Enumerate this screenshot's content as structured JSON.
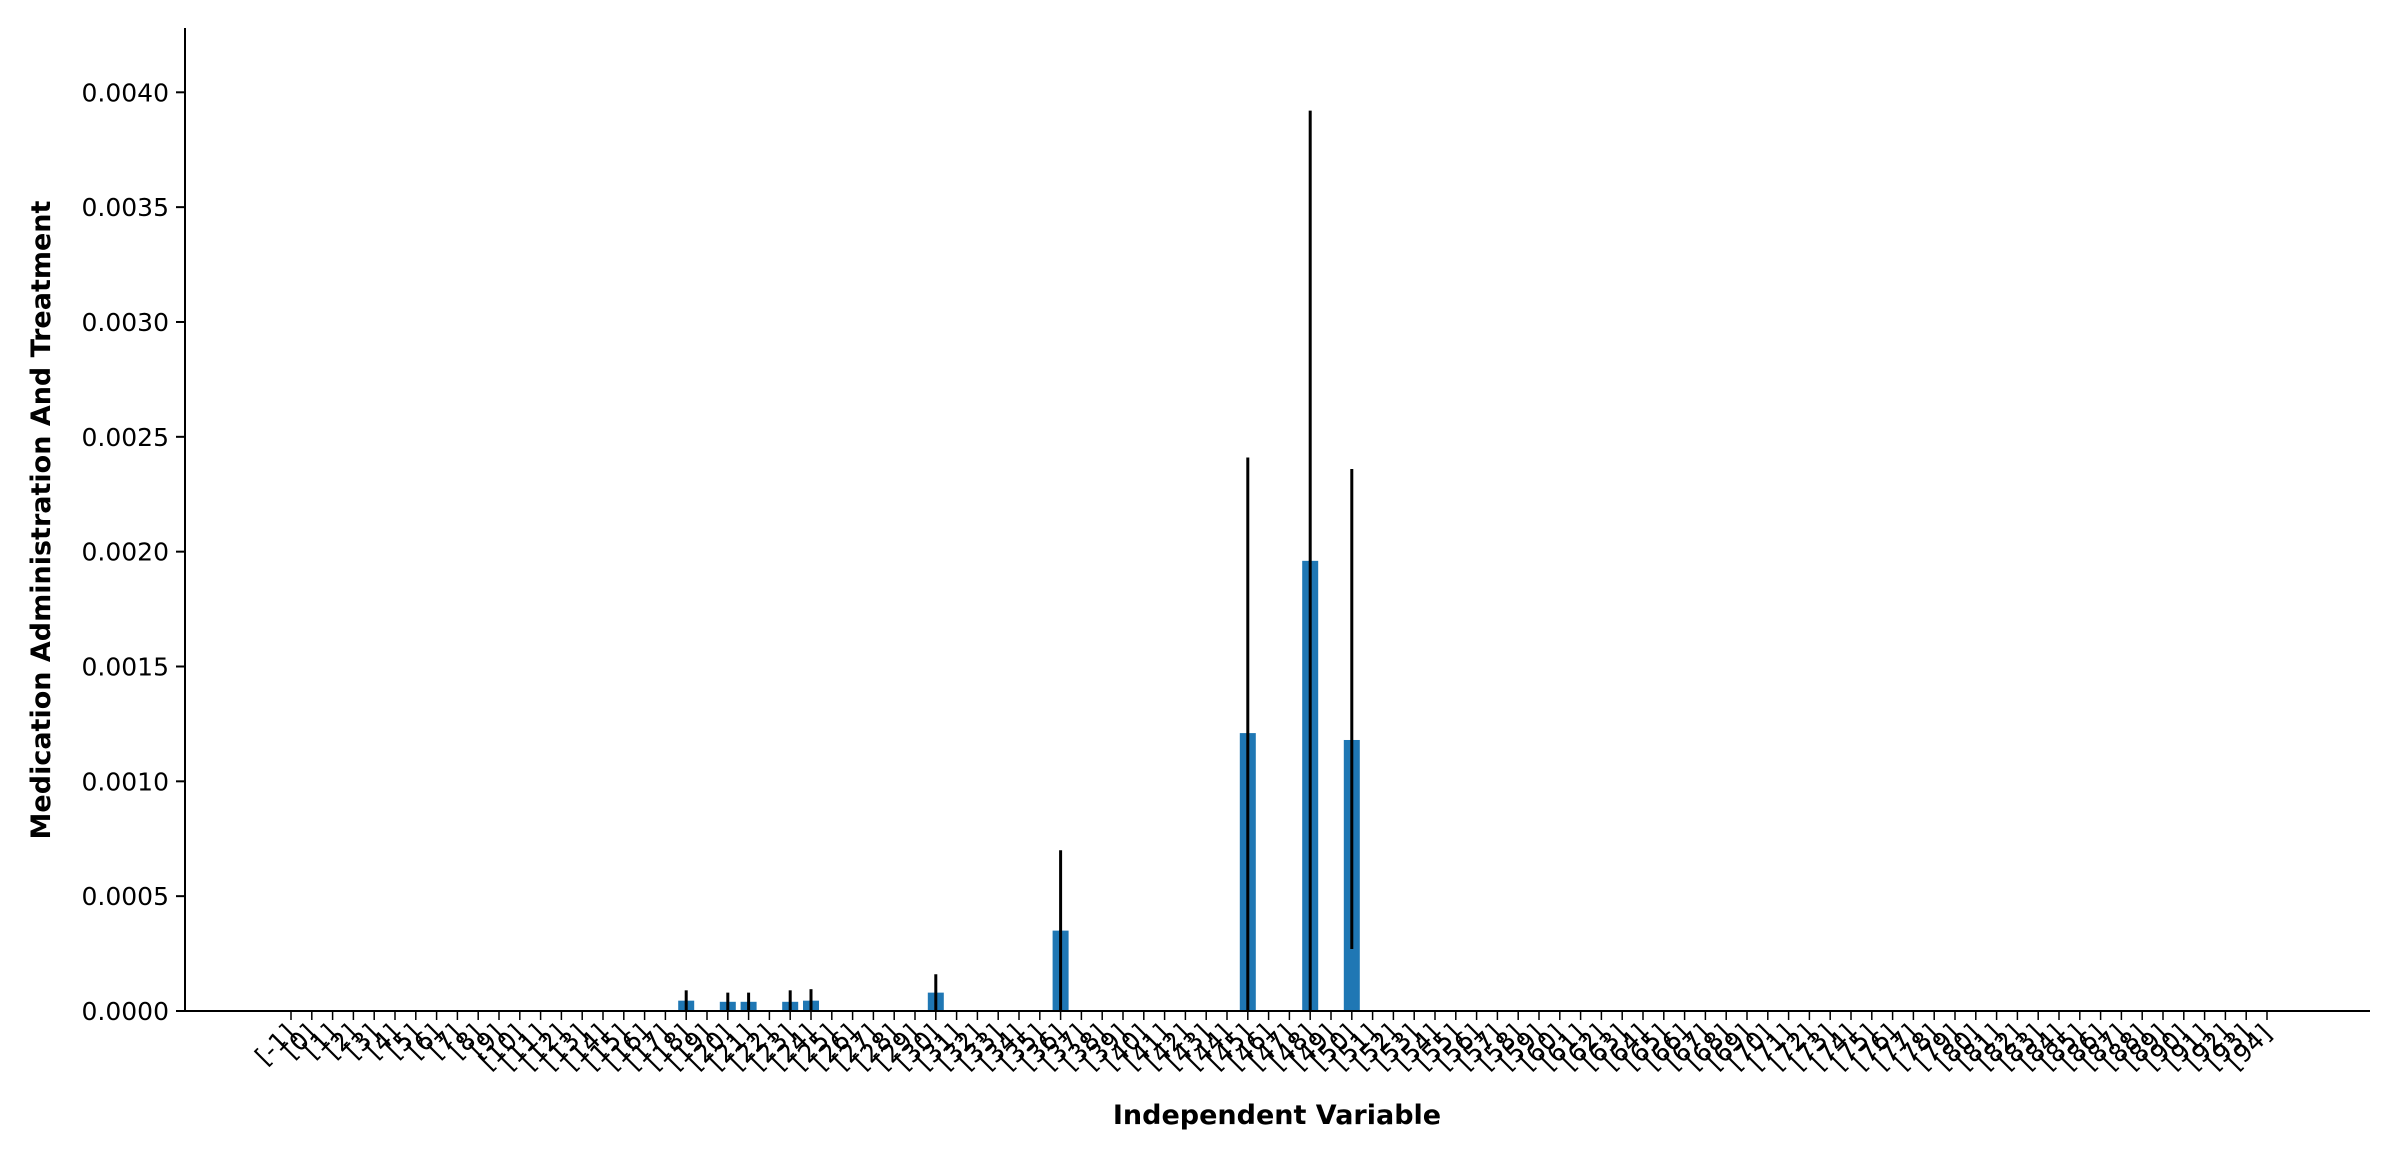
{
  "chart_data": {
    "type": "bar",
    "xlabel": "Independent Variable",
    "ylabel": "Medication Administration And Treatment",
    "ylim": [
      0,
      0.00428
    ],
    "yticks": [
      "0.0000",
      "0.0005",
      "0.0010",
      "0.0015",
      "0.0020",
      "0.0025",
      "0.0030",
      "0.0035",
      "0.0040"
    ],
    "ytick_values": [
      0,
      0.0005,
      0.001,
      0.0015,
      0.002,
      0.0025,
      0.003,
      0.0035,
      0.004
    ],
    "grid": false,
    "bar_color": "#1f77b4",
    "error_color": "#000000",
    "categories": [
      "[-1]",
      "[0]",
      "[1]",
      "[2]",
      "[3]",
      "[4]",
      "[5]",
      "[6]",
      "[7]",
      "[8]",
      "[9]",
      "[10]",
      "[11]",
      "[12]",
      "[13]",
      "[14]",
      "[15]",
      "[16]",
      "[17]",
      "[18]",
      "[19]",
      "[20]",
      "[21]",
      "[22]",
      "[23]",
      "[24]",
      "[25]",
      "[26]",
      "[27]",
      "[28]",
      "[29]",
      "[30]",
      "[31]",
      "[32]",
      "[33]",
      "[34]",
      "[35]",
      "[36]",
      "[37]",
      "[38]",
      "[39]",
      "[40]",
      "[41]",
      "[42]",
      "[43]",
      "[44]",
      "[45]",
      "[46]",
      "[47]",
      "[48]",
      "[49]",
      "[50]",
      "[51]",
      "[52]",
      "[53]",
      "[54]",
      "[55]",
      "[56]",
      "[57]",
      "[58]",
      "[59]",
      "[60]",
      "[61]",
      "[62]",
      "[63]",
      "[64]",
      "[65]",
      "[66]",
      "[67]",
      "[68]",
      "[69]",
      "[70]",
      "[71]",
      "[72]",
      "[73]",
      "[74]",
      "[75]",
      "[76]",
      "[77]",
      "[78]",
      "[79]",
      "[80]",
      "[81]",
      "[82]",
      "[83]",
      "[84]",
      "[85]",
      "[86]",
      "[87]",
      "[88]",
      "[89]",
      "[90]",
      "[91]",
      "[92]",
      "[93]",
      "[94]"
    ],
    "values": [
      0,
      0,
      0,
      0,
      0,
      0,
      0,
      0,
      0,
      0,
      0,
      0,
      0,
      0,
      0,
      0,
      0,
      0,
      0,
      4.5e-05,
      0,
      4e-05,
      4e-05,
      0,
      4e-05,
      4.5e-05,
      0,
      0,
      0,
      0,
      0,
      8e-05,
      0,
      0,
      0,
      0,
      0,
      0.00035,
      0,
      0,
      0,
      0,
      0,
      0,
      0,
      0,
      0.00121,
      0,
      0,
      0.00196,
      0,
      0.00118,
      0,
      0,
      0,
      0,
      0,
      0,
      0,
      0,
      0,
      0,
      0,
      0,
      0,
      0,
      0,
      0,
      0,
      0,
      0,
      0,
      0,
      0,
      0,
      0,
      0,
      0,
      0,
      0,
      0,
      0,
      0,
      0,
      0,
      0,
      0,
      0,
      0,
      0,
      0,
      0,
      0,
      0,
      0,
      0
    ],
    "err_low": [
      0,
      0,
      0,
      0,
      0,
      0,
      0,
      0,
      0,
      0,
      0,
      0,
      0,
      0,
      0,
      0,
      0,
      0,
      0,
      4.5e-05,
      0,
      4e-05,
      4e-05,
      0,
      4e-05,
      4.5e-05,
      0,
      0,
      0,
      0,
      0,
      8e-05,
      0,
      0,
      0,
      0,
      0,
      0.00035,
      0,
      0,
      0,
      0,
      0,
      0,
      0,
      0,
      0.00121,
      0,
      0,
      0.00196,
      0,
      0.00091,
      0,
      0,
      0,
      0,
      0,
      0,
      0,
      0,
      0,
      0,
      0,
      0,
      0,
      0,
      0,
      0,
      0,
      0,
      0,
      0,
      0,
      0,
      0,
      0,
      0,
      0,
      0,
      0,
      0,
      0,
      0,
      0,
      0,
      0,
      0,
      0,
      0,
      0,
      0,
      0,
      0,
      0,
      0,
      0
    ],
    "err_high": [
      0,
      0,
      0,
      0,
      0,
      0,
      0,
      0,
      0,
      0,
      0,
      0,
      0,
      0,
      0,
      0,
      0,
      0,
      0,
      4.5e-05,
      0,
      4e-05,
      4e-05,
      0,
      5e-05,
      5e-05,
      0,
      0,
      0,
      0,
      0,
      8e-05,
      0,
      0,
      0,
      0,
      0,
      0.00035,
      0,
      0,
      0,
      0,
      0,
      0,
      0,
      0,
      0.0012,
      0,
      0,
      0.00196,
      0,
      0.00118,
      0,
      0,
      0,
      0,
      0,
      0,
      0,
      0,
      0,
      0,
      0,
      0,
      0,
      0,
      0,
      0,
      0,
      0,
      0,
      0,
      0,
      0,
      0,
      0,
      0,
      0,
      0,
      0,
      0,
      0,
      0,
      0,
      0,
      0,
      0,
      0,
      0,
      0,
      0,
      0,
      0,
      0,
      0,
      0
    ]
  }
}
